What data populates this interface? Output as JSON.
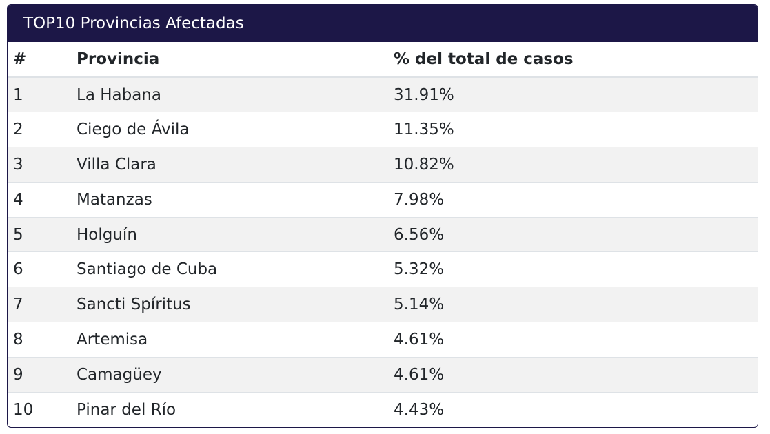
{
  "card": {
    "title": "TOP10 Provincias Afectadas"
  },
  "table": {
    "headers": {
      "num": "#",
      "provincia": "Provincia",
      "pct": "% del total de casos"
    },
    "rows": [
      {
        "num": "1",
        "provincia": "La Habana",
        "pct": "31.91%"
      },
      {
        "num": "2",
        "provincia": "Ciego de Ávila",
        "pct": "11.35%"
      },
      {
        "num": "3",
        "provincia": "Villa Clara",
        "pct": "10.82%"
      },
      {
        "num": "4",
        "provincia": "Matanzas",
        "pct": "7.98%"
      },
      {
        "num": "5",
        "provincia": "Holguín",
        "pct": "6.56%"
      },
      {
        "num": "6",
        "provincia": "Santiago de Cuba",
        "pct": "5.32%"
      },
      {
        "num": "7",
        "provincia": "Sancti Spíritus",
        "pct": "5.14%"
      },
      {
        "num": "8",
        "provincia": "Artemisa",
        "pct": "4.61%"
      },
      {
        "num": "9",
        "provincia": "Camagüey",
        "pct": "4.61%"
      },
      {
        "num": "10",
        "provincia": "Pinar del Río",
        "pct": "4.43%"
      }
    ]
  },
  "colors": {
    "header_bg": "#1c1747",
    "header_text": "#ffffff",
    "stripe": "#f2f2f2"
  }
}
